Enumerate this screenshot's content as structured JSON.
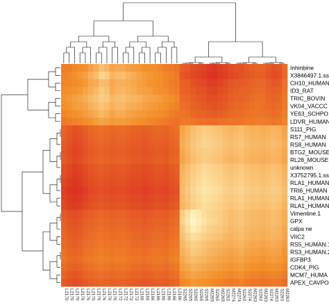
{
  "chart_data": {
    "type": "heatmap",
    "title": "",
    "xlabel": "",
    "ylabel": "",
    "colors": {
      "low": "#d62020",
      "mid": "#f4902a",
      "high": "#fff6c0"
    },
    "row_labels": [
      "Inhinbine",
      "X3846497.1.ss.",
      "CH10_HUMAN",
      "ID3_RAT",
      "TRIC_BOVIN",
      "VK04_VACCC",
      "YE63_SCHPO",
      "LDVR_HUMAN",
      "S111_PIG",
      "RS7_HUMAN",
      "RS8_HUMAN",
      "BTG2_MOUSE",
      "RL28_MOUSE",
      "unknown",
      "X3752795.1.ss.",
      "RLA1_HUMAN",
      "TRI6_HUMAN",
      "RLA1_HUMAN",
      "RLA1_HUMAN",
      "Vimentine.1",
      "GPX",
      "calpa ne",
      "VIIC2",
      "RS5_HUMAN.1",
      "RS3_HUMAN.2",
      "IGFBP3",
      "CDK4_PIG",
      "MCM7_HUMA",
      "APEX_CAVPO"
    ],
    "col_labels": [
      "L2170",
      "L2170",
      "L2170",
      "L2176",
      "L2176",
      "L2170",
      "L2176",
      "L2176",
      "L2176",
      "L2176",
      "L2172",
      "L2172",
      "L2172",
      "L2172",
      "L2166",
      "L2166",
      "L2166",
      "L2166",
      "L2166",
      "L2166",
      "L2166",
      "L2166",
      "S2265",
      "S2265",
      "S2265",
      "S2265",
      "S2265",
      "M2265",
      "S2265",
      "M2265",
      "S2263",
      "M2274",
      "M2274",
      "S2263",
      "S2274",
      "M2263",
      "S2263",
      "M2263",
      "S2274",
      "M2263",
      "S2263",
      "M2263"
    ],
    "values": [
      [
        0.42,
        0.42,
        0.46,
        0.48,
        0.5,
        0.58,
        0.64,
        0.74,
        0.68,
        0.6,
        0.62,
        0.62,
        0.58,
        0.56,
        0.54,
        0.5,
        0.5,
        0.48,
        0.46,
        0.42,
        0.4,
        0.38,
        0.28,
        0.26,
        0.2,
        0.18,
        0.16,
        0.12,
        0.1,
        0.14,
        0.16,
        0.2,
        0.22,
        0.22,
        0.26,
        0.28,
        0.3,
        0.3,
        0.26,
        0.22,
        0.24,
        0.34
      ],
      [
        0.44,
        0.46,
        0.5,
        0.54,
        0.58,
        0.66,
        0.72,
        0.84,
        0.8,
        0.68,
        0.72,
        0.74,
        0.68,
        0.64,
        0.6,
        0.56,
        0.54,
        0.52,
        0.5,
        0.46,
        0.44,
        0.4,
        0.24,
        0.22,
        0.18,
        0.16,
        0.14,
        0.1,
        0.08,
        0.12,
        0.14,
        0.18,
        0.2,
        0.22,
        0.24,
        0.26,
        0.28,
        0.28,
        0.24,
        0.2,
        0.22,
        0.32
      ],
      [
        0.46,
        0.46,
        0.48,
        0.5,
        0.54,
        0.62,
        0.64,
        0.72,
        0.7,
        0.62,
        0.66,
        0.66,
        0.64,
        0.62,
        0.58,
        0.56,
        0.52,
        0.5,
        0.5,
        0.46,
        0.42,
        0.4,
        0.3,
        0.28,
        0.22,
        0.2,
        0.18,
        0.14,
        0.14,
        0.16,
        0.2,
        0.24,
        0.26,
        0.26,
        0.28,
        0.3,
        0.32,
        0.32,
        0.28,
        0.24,
        0.26,
        0.36
      ],
      [
        0.48,
        0.5,
        0.52,
        0.54,
        0.6,
        0.64,
        0.7,
        0.78,
        0.74,
        0.64,
        0.68,
        0.7,
        0.66,
        0.64,
        0.6,
        0.58,
        0.56,
        0.52,
        0.5,
        0.48,
        0.44,
        0.42,
        0.3,
        0.3,
        0.26,
        0.22,
        0.22,
        0.18,
        0.16,
        0.2,
        0.22,
        0.26,
        0.28,
        0.3,
        0.3,
        0.32,
        0.34,
        0.34,
        0.3,
        0.28,
        0.3,
        0.38
      ],
      [
        0.52,
        0.54,
        0.58,
        0.6,
        0.64,
        0.7,
        0.74,
        0.8,
        0.78,
        0.7,
        0.72,
        0.74,
        0.7,
        0.68,
        0.66,
        0.62,
        0.6,
        0.58,
        0.56,
        0.52,
        0.5,
        0.46,
        0.34,
        0.32,
        0.28,
        0.26,
        0.24,
        0.2,
        0.2,
        0.22,
        0.24,
        0.28,
        0.3,
        0.3,
        0.32,
        0.34,
        0.36,
        0.36,
        0.32,
        0.3,
        0.32,
        0.4
      ],
      [
        0.5,
        0.52,
        0.56,
        0.58,
        0.6,
        0.66,
        0.7,
        0.76,
        0.72,
        0.66,
        0.7,
        0.7,
        0.66,
        0.64,
        0.62,
        0.58,
        0.56,
        0.54,
        0.52,
        0.5,
        0.46,
        0.44,
        0.36,
        0.34,
        0.3,
        0.28,
        0.26,
        0.24,
        0.22,
        0.24,
        0.26,
        0.3,
        0.32,
        0.32,
        0.34,
        0.36,
        0.38,
        0.36,
        0.34,
        0.32,
        0.34,
        0.4
      ],
      [
        0.46,
        0.48,
        0.5,
        0.52,
        0.56,
        0.6,
        0.64,
        0.7,
        0.66,
        0.6,
        0.64,
        0.64,
        0.6,
        0.58,
        0.56,
        0.54,
        0.52,
        0.5,
        0.48,
        0.46,
        0.42,
        0.4,
        0.38,
        0.36,
        0.32,
        0.3,
        0.3,
        0.28,
        0.26,
        0.28,
        0.3,
        0.32,
        0.34,
        0.34,
        0.36,
        0.38,
        0.38,
        0.38,
        0.36,
        0.34,
        0.36,
        0.42
      ],
      [
        0.4,
        0.42,
        0.44,
        0.46,
        0.48,
        0.52,
        0.56,
        0.6,
        0.58,
        0.54,
        0.56,
        0.56,
        0.54,
        0.52,
        0.5,
        0.48,
        0.46,
        0.44,
        0.42,
        0.4,
        0.38,
        0.36,
        0.4,
        0.4,
        0.38,
        0.36,
        0.36,
        0.34,
        0.34,
        0.36,
        0.36,
        0.38,
        0.38,
        0.38,
        0.4,
        0.4,
        0.42,
        0.42,
        0.4,
        0.38,
        0.4,
        0.44
      ],
      [
        0.3,
        0.26,
        0.22,
        0.24,
        0.28,
        0.32,
        0.34,
        0.36,
        0.34,
        0.32,
        0.34,
        0.34,
        0.32,
        0.3,
        0.3,
        0.28,
        0.3,
        0.32,
        0.32,
        0.3,
        0.34,
        0.36,
        0.6,
        0.66,
        0.72,
        0.76,
        0.8,
        0.78,
        0.76,
        0.74,
        0.7,
        0.68,
        0.7,
        0.72,
        0.68,
        0.66,
        0.66,
        0.64,
        0.66,
        0.68,
        0.66,
        0.6
      ],
      [
        0.28,
        0.24,
        0.2,
        0.22,
        0.26,
        0.3,
        0.32,
        0.34,
        0.32,
        0.3,
        0.32,
        0.32,
        0.3,
        0.28,
        0.28,
        0.26,
        0.28,
        0.3,
        0.3,
        0.28,
        0.32,
        0.34,
        0.62,
        0.68,
        0.74,
        0.78,
        0.82,
        0.8,
        0.78,
        0.76,
        0.72,
        0.7,
        0.72,
        0.74,
        0.7,
        0.68,
        0.68,
        0.66,
        0.68,
        0.7,
        0.68,
        0.62
      ],
      [
        0.26,
        0.22,
        0.18,
        0.2,
        0.24,
        0.28,
        0.3,
        0.32,
        0.3,
        0.28,
        0.3,
        0.3,
        0.28,
        0.26,
        0.26,
        0.24,
        0.26,
        0.28,
        0.28,
        0.26,
        0.3,
        0.32,
        0.64,
        0.7,
        0.76,
        0.8,
        0.84,
        0.82,
        0.8,
        0.78,
        0.74,
        0.72,
        0.74,
        0.76,
        0.72,
        0.7,
        0.7,
        0.68,
        0.7,
        0.72,
        0.7,
        0.64
      ],
      [
        0.24,
        0.2,
        0.16,
        0.18,
        0.22,
        0.26,
        0.28,
        0.3,
        0.28,
        0.26,
        0.28,
        0.28,
        0.26,
        0.24,
        0.24,
        0.22,
        0.24,
        0.26,
        0.26,
        0.24,
        0.28,
        0.3,
        0.62,
        0.68,
        0.74,
        0.78,
        0.8,
        0.8,
        0.78,
        0.76,
        0.72,
        0.7,
        0.72,
        0.74,
        0.7,
        0.68,
        0.68,
        0.66,
        0.68,
        0.7,
        0.68,
        0.62
      ],
      [
        0.26,
        0.22,
        0.18,
        0.2,
        0.24,
        0.28,
        0.3,
        0.32,
        0.3,
        0.28,
        0.3,
        0.3,
        0.28,
        0.26,
        0.26,
        0.24,
        0.26,
        0.28,
        0.28,
        0.26,
        0.3,
        0.32,
        0.6,
        0.66,
        0.72,
        0.76,
        0.8,
        0.78,
        0.76,
        0.74,
        0.7,
        0.68,
        0.7,
        0.72,
        0.68,
        0.66,
        0.66,
        0.64,
        0.66,
        0.68,
        0.66,
        0.6
      ],
      [
        0.22,
        0.18,
        0.14,
        0.16,
        0.2,
        0.24,
        0.26,
        0.28,
        0.26,
        0.24,
        0.26,
        0.26,
        0.24,
        0.22,
        0.22,
        0.2,
        0.22,
        0.24,
        0.24,
        0.22,
        0.26,
        0.28,
        0.66,
        0.72,
        0.78,
        0.82,
        0.86,
        0.84,
        0.82,
        0.8,
        0.76,
        0.74,
        0.76,
        0.78,
        0.74,
        0.72,
        0.72,
        0.7,
        0.72,
        0.74,
        0.72,
        0.66
      ],
      [
        0.2,
        0.16,
        0.12,
        0.14,
        0.18,
        0.22,
        0.24,
        0.26,
        0.24,
        0.22,
        0.24,
        0.24,
        0.22,
        0.2,
        0.2,
        0.18,
        0.2,
        0.22,
        0.22,
        0.2,
        0.24,
        0.26,
        0.68,
        0.74,
        0.8,
        0.84,
        0.88,
        0.86,
        0.84,
        0.82,
        0.78,
        0.76,
        0.78,
        0.8,
        0.76,
        0.74,
        0.74,
        0.72,
        0.74,
        0.76,
        0.74,
        0.68
      ],
      [
        0.16,
        0.12,
        0.1,
        0.12,
        0.16,
        0.2,
        0.22,
        0.24,
        0.22,
        0.2,
        0.22,
        0.22,
        0.2,
        0.18,
        0.18,
        0.16,
        0.18,
        0.2,
        0.2,
        0.18,
        0.22,
        0.24,
        0.7,
        0.76,
        0.82,
        0.86,
        0.9,
        0.88,
        0.86,
        0.84,
        0.8,
        0.78,
        0.8,
        0.82,
        0.78,
        0.76,
        0.76,
        0.74,
        0.76,
        0.78,
        0.76,
        0.7
      ],
      [
        0.14,
        0.1,
        0.08,
        0.1,
        0.14,
        0.18,
        0.2,
        0.22,
        0.2,
        0.18,
        0.2,
        0.2,
        0.18,
        0.16,
        0.16,
        0.14,
        0.16,
        0.18,
        0.18,
        0.16,
        0.2,
        0.22,
        0.72,
        0.78,
        0.84,
        0.88,
        0.92,
        0.9,
        0.88,
        0.86,
        0.82,
        0.8,
        0.82,
        0.84,
        0.8,
        0.78,
        0.78,
        0.76,
        0.78,
        0.8,
        0.78,
        0.72
      ],
      [
        0.16,
        0.12,
        0.1,
        0.12,
        0.16,
        0.2,
        0.22,
        0.24,
        0.22,
        0.2,
        0.22,
        0.22,
        0.2,
        0.18,
        0.18,
        0.16,
        0.18,
        0.2,
        0.2,
        0.18,
        0.22,
        0.24,
        0.7,
        0.76,
        0.82,
        0.86,
        0.9,
        0.88,
        0.86,
        0.84,
        0.8,
        0.78,
        0.8,
        0.82,
        0.78,
        0.76,
        0.76,
        0.74,
        0.76,
        0.78,
        0.76,
        0.7
      ],
      [
        0.18,
        0.14,
        0.12,
        0.14,
        0.18,
        0.22,
        0.24,
        0.26,
        0.24,
        0.22,
        0.24,
        0.24,
        0.22,
        0.2,
        0.2,
        0.18,
        0.2,
        0.22,
        0.22,
        0.2,
        0.24,
        0.26,
        0.68,
        0.74,
        0.8,
        0.84,
        0.88,
        0.86,
        0.84,
        0.82,
        0.78,
        0.76,
        0.78,
        0.8,
        0.76,
        0.74,
        0.74,
        0.72,
        0.74,
        0.76,
        0.74,
        0.68
      ],
      [
        0.26,
        0.22,
        0.2,
        0.22,
        0.26,
        0.28,
        0.3,
        0.32,
        0.3,
        0.28,
        0.3,
        0.3,
        0.28,
        0.26,
        0.26,
        0.24,
        0.26,
        0.28,
        0.28,
        0.26,
        0.3,
        0.32,
        0.8,
        0.9,
        0.98,
        0.94,
        0.88,
        0.84,
        0.82,
        0.8,
        0.76,
        0.72,
        0.74,
        0.76,
        0.72,
        0.7,
        0.7,
        0.68,
        0.7,
        0.72,
        0.7,
        0.64
      ],
      [
        0.28,
        0.24,
        0.22,
        0.24,
        0.28,
        0.3,
        0.32,
        0.34,
        0.32,
        0.3,
        0.32,
        0.32,
        0.3,
        0.28,
        0.28,
        0.26,
        0.28,
        0.3,
        0.3,
        0.28,
        0.32,
        0.34,
        0.82,
        0.92,
        1.0,
        0.96,
        0.9,
        0.86,
        0.84,
        0.8,
        0.76,
        0.72,
        0.74,
        0.76,
        0.72,
        0.7,
        0.7,
        0.68,
        0.7,
        0.72,
        0.7,
        0.64
      ],
      [
        0.3,
        0.26,
        0.24,
        0.26,
        0.3,
        0.32,
        0.34,
        0.36,
        0.34,
        0.32,
        0.34,
        0.34,
        0.32,
        0.3,
        0.3,
        0.28,
        0.3,
        0.32,
        0.32,
        0.3,
        0.34,
        0.36,
        0.78,
        0.88,
        0.96,
        0.92,
        0.86,
        0.82,
        0.8,
        0.78,
        0.74,
        0.7,
        0.72,
        0.74,
        0.7,
        0.68,
        0.68,
        0.66,
        0.68,
        0.7,
        0.68,
        0.62
      ],
      [
        0.32,
        0.28,
        0.26,
        0.28,
        0.32,
        0.34,
        0.36,
        0.38,
        0.36,
        0.34,
        0.36,
        0.36,
        0.34,
        0.32,
        0.32,
        0.3,
        0.32,
        0.34,
        0.34,
        0.32,
        0.36,
        0.38,
        0.74,
        0.82,
        0.88,
        0.86,
        0.82,
        0.78,
        0.76,
        0.74,
        0.7,
        0.68,
        0.7,
        0.72,
        0.68,
        0.66,
        0.66,
        0.64,
        0.66,
        0.68,
        0.66,
        0.6
      ],
      [
        0.34,
        0.3,
        0.28,
        0.3,
        0.34,
        0.36,
        0.38,
        0.4,
        0.38,
        0.36,
        0.38,
        0.38,
        0.36,
        0.34,
        0.34,
        0.32,
        0.34,
        0.36,
        0.36,
        0.34,
        0.38,
        0.4,
        0.7,
        0.76,
        0.82,
        0.8,
        0.76,
        0.72,
        0.7,
        0.68,
        0.66,
        0.64,
        0.66,
        0.68,
        0.64,
        0.62,
        0.62,
        0.6,
        0.62,
        0.64,
        0.62,
        0.56
      ],
      [
        0.36,
        0.32,
        0.3,
        0.32,
        0.36,
        0.38,
        0.4,
        0.42,
        0.4,
        0.38,
        0.4,
        0.4,
        0.38,
        0.36,
        0.36,
        0.34,
        0.36,
        0.38,
        0.38,
        0.36,
        0.4,
        0.42,
        0.66,
        0.72,
        0.78,
        0.76,
        0.72,
        0.68,
        0.66,
        0.64,
        0.62,
        0.6,
        0.62,
        0.64,
        0.6,
        0.58,
        0.58,
        0.56,
        0.58,
        0.6,
        0.58,
        0.52
      ],
      [
        0.38,
        0.34,
        0.32,
        0.34,
        0.38,
        0.4,
        0.42,
        0.44,
        0.42,
        0.4,
        0.42,
        0.42,
        0.4,
        0.38,
        0.38,
        0.36,
        0.38,
        0.4,
        0.4,
        0.38,
        0.42,
        0.44,
        0.62,
        0.68,
        0.72,
        0.7,
        0.68,
        0.64,
        0.62,
        0.6,
        0.58,
        0.56,
        0.58,
        0.6,
        0.56,
        0.54,
        0.54,
        0.52,
        0.54,
        0.56,
        0.54,
        0.5
      ],
      [
        0.34,
        0.3,
        0.28,
        0.3,
        0.34,
        0.36,
        0.38,
        0.4,
        0.38,
        0.36,
        0.38,
        0.38,
        0.36,
        0.34,
        0.34,
        0.32,
        0.34,
        0.36,
        0.36,
        0.34,
        0.38,
        0.4,
        0.58,
        0.62,
        0.66,
        0.64,
        0.62,
        0.6,
        0.58,
        0.56,
        0.54,
        0.52,
        0.54,
        0.56,
        0.52,
        0.5,
        0.5,
        0.48,
        0.5,
        0.52,
        0.5,
        0.46
      ],
      [
        0.3,
        0.26,
        0.24,
        0.26,
        0.3,
        0.32,
        0.34,
        0.36,
        0.34,
        0.32,
        0.34,
        0.34,
        0.32,
        0.3,
        0.3,
        0.28,
        0.3,
        0.32,
        0.32,
        0.3,
        0.34,
        0.36,
        0.52,
        0.56,
        0.6,
        0.58,
        0.56,
        0.54,
        0.52,
        0.5,
        0.48,
        0.46,
        0.48,
        0.5,
        0.46,
        0.44,
        0.44,
        0.42,
        0.44,
        0.46,
        0.44,
        0.4
      ],
      [
        0.26,
        0.22,
        0.2,
        0.22,
        0.26,
        0.28,
        0.3,
        0.32,
        0.3,
        0.28,
        0.3,
        0.3,
        0.28,
        0.26,
        0.26,
        0.24,
        0.26,
        0.28,
        0.28,
        0.26,
        0.3,
        0.32,
        0.46,
        0.5,
        0.54,
        0.52,
        0.5,
        0.48,
        0.46,
        0.44,
        0.42,
        0.4,
        0.42,
        0.44,
        0.4,
        0.38,
        0.38,
        0.36,
        0.38,
        0.4,
        0.38,
        0.34
      ]
    ],
    "col_dendrogram": "hierarchical clustering of columns",
    "row_dendrogram": "hierarchical clustering of rows"
  }
}
